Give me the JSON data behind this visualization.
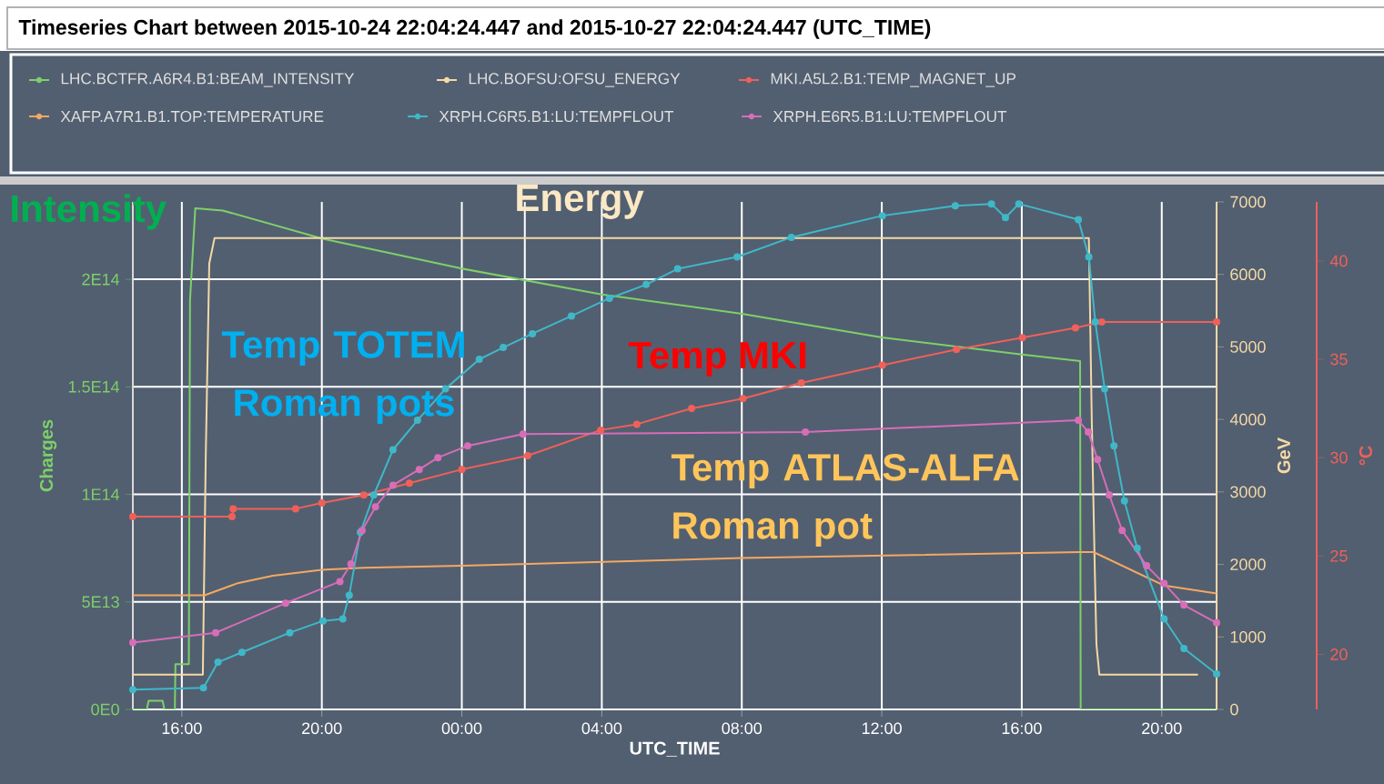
{
  "chart_data": {
    "type": "line",
    "title": "Timeseries Chart between 2015-10-24 22:04:24.447 and 2015-10-27 22:04:24.447 (UTC_TIME)",
    "xlabel": "UTC_TIME",
    "ylabel": "Charges",
    "y2label": "GeV",
    "y3label": "°C",
    "xlim": [
      "2015-10-26T14:36",
      "2015-10-27T21:34"
    ],
    "xticks": [
      {
        "value": "2015-10-26T16:00",
        "label": "16:00"
      },
      {
        "value": "2015-10-26T20:00",
        "label": "20:00"
      },
      {
        "value": "2015-10-27T00:00",
        "label": "00:00"
      },
      {
        "value": "2015-10-27T04:00",
        "label": "04:00"
      },
      {
        "value": "2015-10-27T08:00",
        "label": "08:00"
      },
      {
        "value": "2015-10-27T12:00",
        "label": "12:00"
      },
      {
        "value": "2015-10-27T16:00",
        "label": "16:00"
      },
      {
        "value": "2015-10-27T20:00",
        "label": "20:00"
      }
    ],
    "ylim": [
      0,
      236000000000000.0
    ],
    "yticks": [
      {
        "value": 0,
        "label": "0E0"
      },
      {
        "value": 50000000000000.0,
        "label": "5E13"
      },
      {
        "value": 100000000000000.0,
        "label": "1E14"
      },
      {
        "value": 150000000000000.0,
        "label": "1.5E14"
      },
      {
        "value": 200000000000000.0,
        "label": "2E14"
      }
    ],
    "y2lim": [
      0,
      7000
    ],
    "y2ticks": [
      0,
      1000,
      2000,
      3000,
      4000,
      5000,
      6000,
      7000
    ],
    "y3lim": [
      17.2,
      43.0
    ],
    "y3ticks": [
      20,
      25,
      30,
      35,
      40
    ],
    "grid": true,
    "legend": "top",
    "ref_lines": [
      {
        "axis": "x",
        "value": "2015-10-27T01:48",
        "color": "#ffffff"
      }
    ],
    "annotations": [
      "Intensity",
      "Energy",
      "Temp TOTEM Roman pots",
      "Temp MKI",
      "Temp ATLAS-ALFA Roman pot"
    ],
    "series": [
      {
        "name": "LHC.BCTFR.A6R4.B1:BEAM_INTENSITY",
        "color": "#7dd06a",
        "marker": "none",
        "x": [
          "2015-10-26T14:36",
          "2015-10-26T15:00",
          "2015-10-26T15:03",
          "2015-10-26T15:27",
          "2015-10-26T15:30",
          "2015-10-26T15:48",
          "2015-10-26T15:49",
          "2015-10-26T16:12",
          "2015-10-26T16:14",
          "2015-10-26T16:23",
          "2015-10-26T17:10",
          "2015-10-26T20:00",
          "2015-10-27T00:00",
          "2015-10-27T04:00",
          "2015-10-27T08:00",
          "2015-10-27T12:00",
          "2015-10-27T16:00",
          "2015-10-27T17:40",
          "2015-10-27T17:41",
          "2015-10-27T21:34"
        ],
        "values": [
          0,
          0,
          4000000000000.0,
          4000000000000.0,
          0,
          0,
          21000000000000.0,
          21000000000000.0,
          190000000000000.0,
          233000000000000.0,
          232000000000000.0,
          219000000000000.0,
          205000000000000.0,
          193000000000000.0,
          184000000000000.0,
          173000000000000.0,
          165000000000000.0,
          162000000000000.0,
          0,
          0
        ]
      },
      {
        "name": "LHC.BOFSU:OFSU_ENERGY",
        "color": "#f5d9a6",
        "marker": "none",
        "axis": "y2",
        "x": [
          "2015-10-26T14:36",
          "2015-10-26T16:36",
          "2015-10-26T16:41",
          "2015-10-26T16:47",
          "2015-10-26T16:56",
          "2015-10-27T17:55",
          "2015-10-27T18:00",
          "2015-10-27T18:05",
          "2015-10-27T18:08",
          "2015-10-27T18:13",
          "2015-10-27T21:02"
        ],
        "values": [
          480,
          480,
          3500,
          6150,
          6500,
          6500,
          4000,
          2000,
          900,
          480,
          480
        ]
      },
      {
        "name": "MKI.A5L2.B1:TEMP_MAGNET_UP",
        "color": "#f0605a",
        "marker": "circle",
        "axis": "y3",
        "x": [
          "2015-10-26T14:36",
          "2015-10-26T17:26",
          "2015-10-26T17:28",
          "2015-10-26T19:15",
          "2015-10-26T20:00",
          "2015-10-26T21:12",
          "2015-10-26T22:30",
          "2015-10-27T00:00",
          "2015-10-27T01:53",
          "2015-10-27T03:58",
          "2015-10-27T05:00",
          "2015-10-27T06:34",
          "2015-10-27T08:02",
          "2015-10-27T09:42",
          "2015-10-27T12:01",
          "2015-10-27T14:08",
          "2015-10-27T16:01",
          "2015-10-27T17:32",
          "2015-10-27T18:17",
          "2015-10-27T21:34"
        ],
        "values": [
          27.0,
          27.0,
          27.4,
          27.4,
          27.7,
          28.1,
          28.7,
          29.4,
          30.1,
          31.4,
          31.7,
          32.5,
          33.0,
          33.8,
          34.7,
          35.5,
          36.1,
          36.6,
          36.9,
          36.9
        ]
      },
      {
        "name": "XAFP.A7R1.B1.TOP:TEMPERATURE",
        "color": "#f5a862",
        "marker": "none",
        "axis": "y3",
        "x": [
          "2015-10-26T14:36",
          "2015-10-26T16:39",
          "2015-10-26T17:34",
          "2015-10-26T18:36",
          "2015-10-26T20:00",
          "2015-10-26T21:12",
          "2015-10-27T00:00",
          "2015-10-27T08:00",
          "2015-10-27T17:41",
          "2015-10-27T18:03",
          "2015-10-27T20:04",
          "2015-10-27T21:34"
        ],
        "values": [
          23.0,
          23.0,
          23.6,
          24.0,
          24.3,
          24.4,
          24.5,
          24.9,
          25.2,
          25.2,
          23.5,
          23.1
        ]
      },
      {
        "name": "XRPH.C6R5.B1:LU:TEMPFLOUT",
        "color": "#3fb8c8",
        "marker": "circle",
        "axis": "y3",
        "x": [
          "2015-10-26T14:36",
          "2015-10-26T16:37",
          "2015-10-26T17:02",
          "2015-10-26T17:43",
          "2015-10-26T19:05",
          "2015-10-26T20:02",
          "2015-10-26T20:36",
          "2015-10-26T20:47",
          "2015-10-26T21:06",
          "2015-10-26T21:29",
          "2015-10-26T22:02",
          "2015-10-26T22:44",
          "2015-10-26T23:32",
          "2015-10-27T00:30",
          "2015-10-27T01:11",
          "2015-10-27T02:01",
          "2015-10-27T03:08",
          "2015-10-27T04:13",
          "2015-10-27T05:16",
          "2015-10-27T06:10",
          "2015-10-27T07:52",
          "2015-10-27T09:25",
          "2015-10-27T12:01",
          "2015-10-27T14:06",
          "2015-10-27T15:08",
          "2015-10-27T15:32",
          "2015-10-27T15:55",
          "2015-10-27T17:37",
          "2015-10-27T17:55",
          "2015-10-27T18:06",
          "2015-10-27T18:22",
          "2015-10-27T18:38",
          "2015-10-27T18:56",
          "2015-10-27T19:18",
          "2015-10-27T20:04",
          "2015-10-27T20:38",
          "2015-10-27T21:34"
        ],
        "values": [
          18.2,
          18.3,
          19.6,
          20.1,
          21.1,
          21.7,
          21.8,
          23.0,
          26.2,
          28.1,
          30.4,
          31.9,
          33.5,
          35.0,
          35.6,
          36.3,
          37.2,
          38.1,
          38.8,
          39.6,
          40.2,
          41.2,
          42.3,
          42.8,
          42.9,
          42.2,
          42.9,
          42.1,
          40.2,
          36.9,
          33.5,
          30.6,
          27.8,
          25.4,
          21.8,
          20.3,
          19.0
        ]
      },
      {
        "name": "XRPH.E6R5.B1:LU:TEMPFLOUT",
        "color": "#d86db8",
        "marker": "circle",
        "axis": "y3",
        "x": [
          "2015-10-26T14:36",
          "2015-10-26T16:58",
          "2015-10-26T18:58",
          "2015-10-26T20:31",
          "2015-10-26T20:50",
          "2015-10-26T21:09",
          "2015-10-26T21:32",
          "2015-10-26T22:02",
          "2015-10-26T22:47",
          "2015-10-26T23:19",
          "2015-10-27T00:10",
          "2015-10-27T01:45",
          "2015-10-27T09:49",
          "2015-10-27T17:37",
          "2015-10-27T17:54",
          "2015-10-27T18:10",
          "2015-10-27T18:30",
          "2015-10-27T18:52",
          "2015-10-27T19:34",
          "2015-10-27T20:04",
          "2015-10-27T20:38",
          "2015-10-27T21:34"
        ],
        "values": [
          20.6,
          21.1,
          22.6,
          23.7,
          24.6,
          26.3,
          27.5,
          28.6,
          29.4,
          30.0,
          30.6,
          31.2,
          31.3,
          31.9,
          31.3,
          29.9,
          28.1,
          26.3,
          24.5,
          23.6,
          22.5,
          21.6
        ]
      }
    ]
  }
}
